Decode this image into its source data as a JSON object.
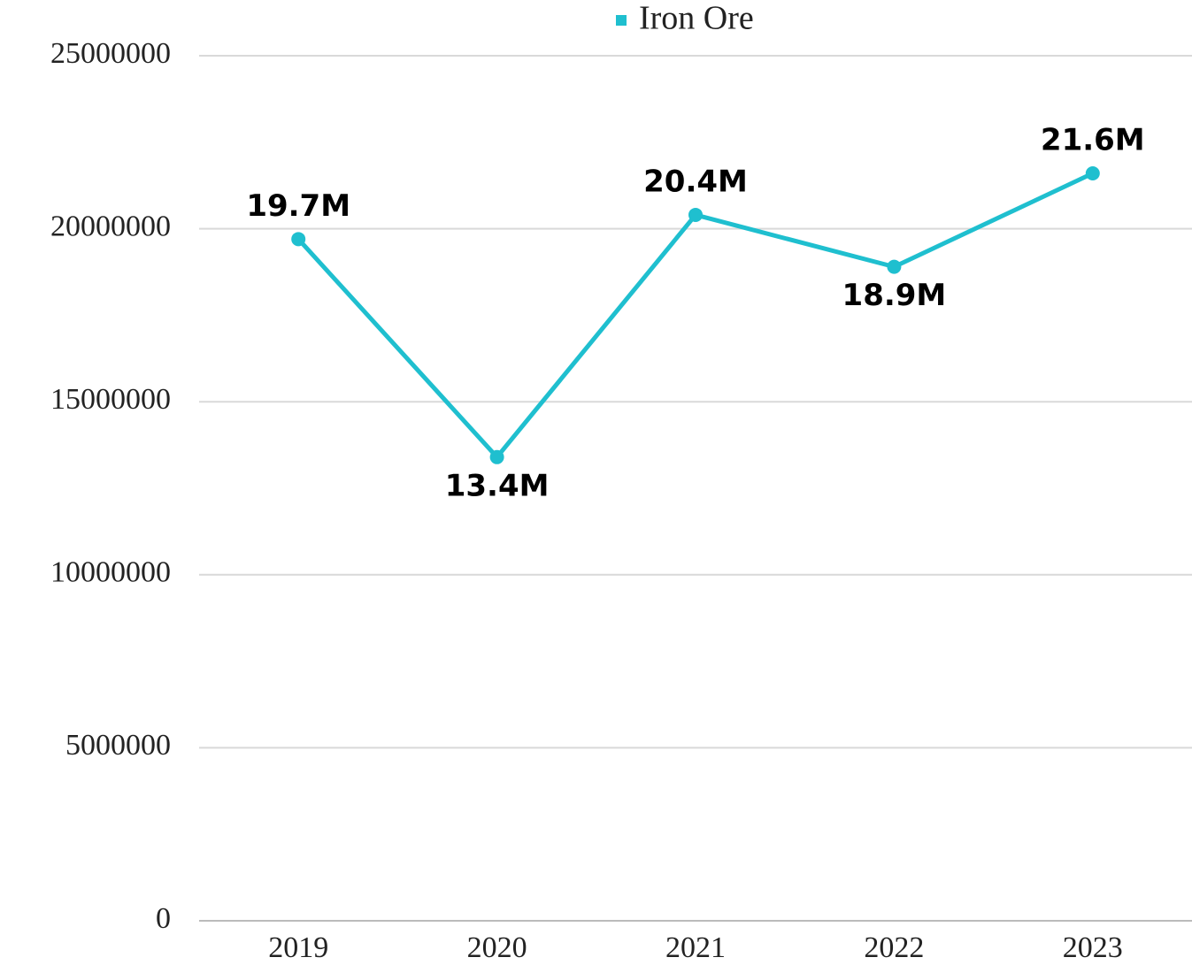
{
  "chart_data": {
    "type": "line",
    "categories": [
      "2019",
      "2020",
      "2021",
      "2022",
      "2023"
    ],
    "series": [
      {
        "name": "Iron Ore",
        "color": "#1fbfcf",
        "values": [
          19700000,
          13400000,
          20400000,
          18900000,
          21600000
        ],
        "value_labels": [
          "19.7M",
          "13.4M",
          "20.4M",
          "18.9M",
          "21.6M"
        ]
      }
    ],
    "ylim": [
      0,
      25000000
    ],
    "yticks": [
      0,
      5000000,
      10000000,
      15000000,
      20000000,
      25000000
    ],
    "grid": true,
    "legend": "top"
  }
}
